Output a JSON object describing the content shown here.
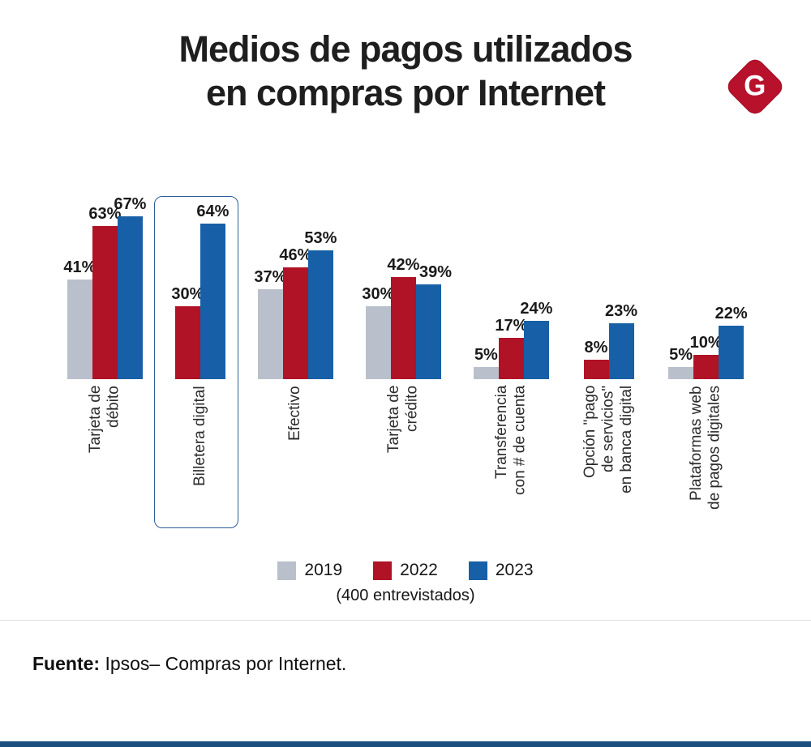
{
  "header": {
    "title_line1": "Medios de pagos utilizados",
    "title_line2": "en compras por Internet",
    "logo_letter": "G",
    "logo_color": "#b8112c"
  },
  "chart_data": {
    "type": "bar",
    "title": "Medios de pagos utilizados en compras por Internet",
    "value_suffix": "%",
    "ylim": [
      0,
      70
    ],
    "grid": false,
    "legend_position": "bottom",
    "legend_note": "(400 entrevistados)",
    "highlighted_category": "Billetera digital",
    "categories": [
      "Tarjeta de\ndébito",
      "Billetera digital",
      "Efectivo",
      "Tarjeta de\ncrédito",
      "Transferencia\ncon # de cuenta",
      "Opción \"pago\nde servicios\"\nen banca digital",
      "Plataformas web\nde pagos digitales"
    ],
    "series": [
      {
        "name": "2019",
        "color": "#b9c0cb",
        "values": [
          41,
          null,
          37,
          30,
          5,
          null,
          5
        ]
      },
      {
        "name": "2022",
        "color": "#b01226",
        "values": [
          63,
          30,
          46,
          42,
          17,
          8,
          10
        ]
      },
      {
        "name": "2023",
        "color": "#1760a7",
        "values": [
          67,
          64,
          53,
          39,
          24,
          23,
          22
        ]
      }
    ]
  },
  "footer": {
    "source_label": "Fuente:",
    "source_text": "Ipsos– Compras por Internet."
  }
}
